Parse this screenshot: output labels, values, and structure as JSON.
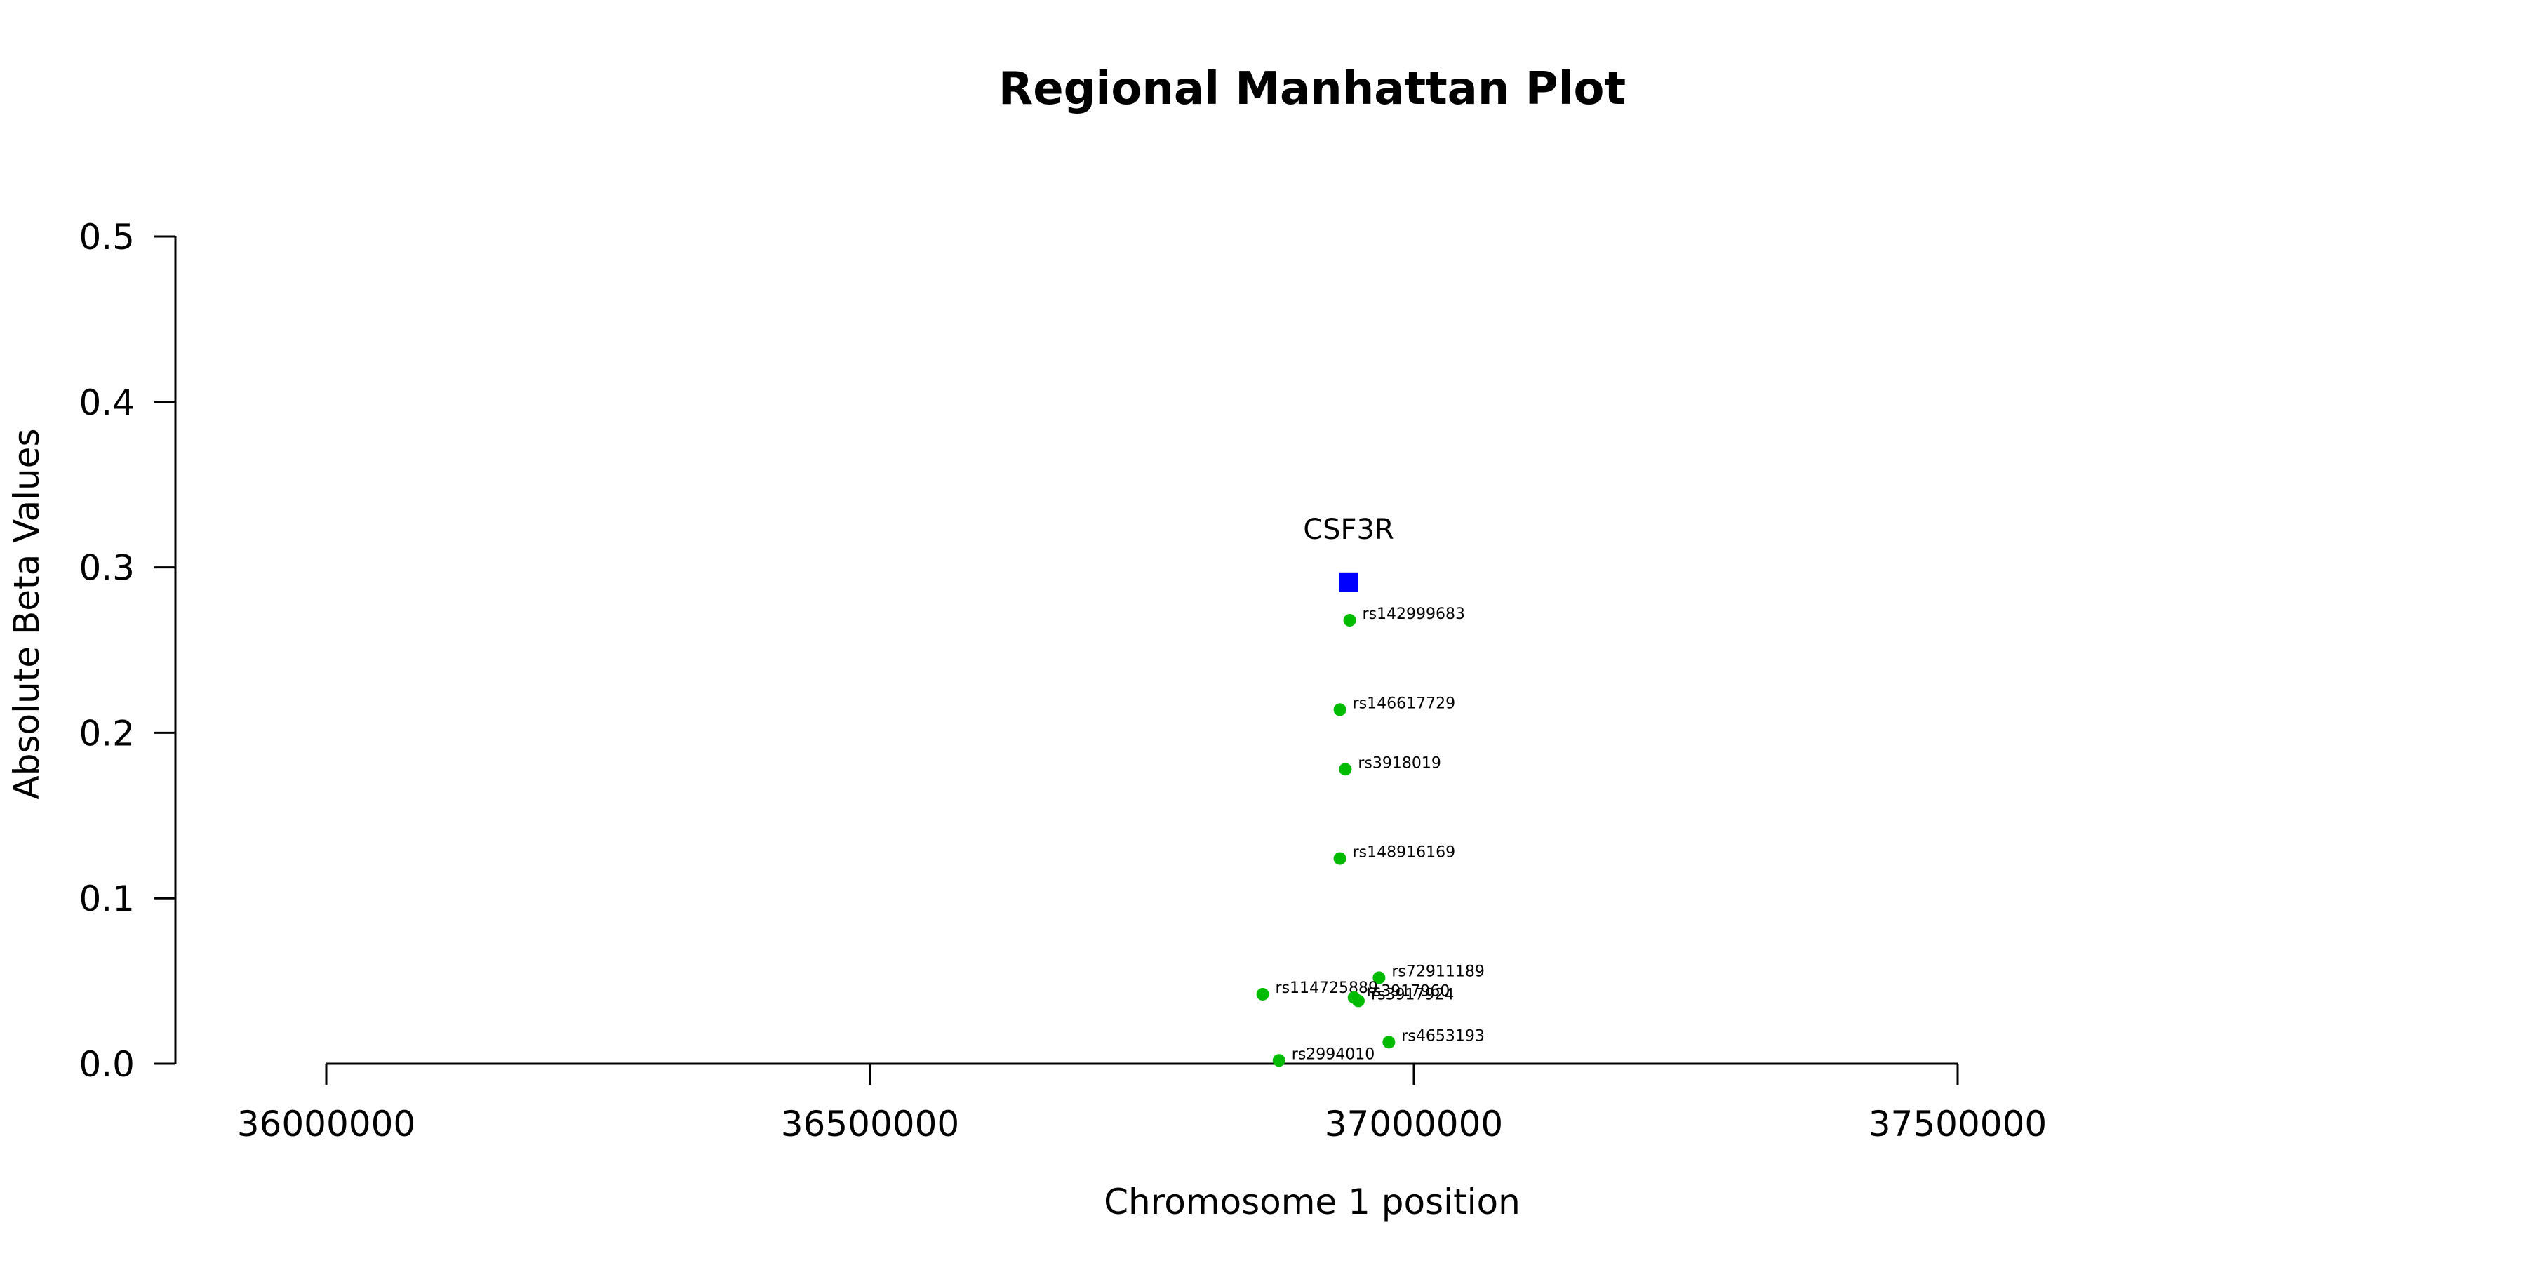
{
  "chart_data": {
    "type": "scatter",
    "title": "Regional Manhattan Plot",
    "xlabel": "Chromosome 1 position",
    "ylabel": "Absolute Beta Values",
    "xlim": [
      36000000,
      37500000
    ],
    "ylim": [
      0,
      0.5
    ],
    "x_ticks": [
      36000000,
      36500000,
      37000000,
      37500000
    ],
    "y_ticks": [
      0.0,
      0.1,
      0.2,
      0.3,
      0.4,
      0.5
    ],
    "x_tick_labels": [
      "36000000",
      "36500000",
      "37000000",
      "37500000"
    ],
    "y_tick_labels": [
      "0.0",
      "0.1",
      "0.2",
      "0.3",
      "0.4",
      "0.5"
    ],
    "grid": false,
    "gene": {
      "name": "CSF3R",
      "x": 36940000,
      "y": 0.291,
      "color": "#0000ff",
      "marker": "square"
    },
    "snp_color": "#00bb00",
    "points": [
      {
        "label": "rs142999683",
        "x": 36941000,
        "y": 0.268
      },
      {
        "label": "rs146617729",
        "x": 36932000,
        "y": 0.214
      },
      {
        "label": "rs3918019",
        "x": 36937000,
        "y": 0.178
      },
      {
        "label": "rs148916169",
        "x": 36932000,
        "y": 0.124
      },
      {
        "label": "rs72911189",
        "x": 36968000,
        "y": 0.052
      },
      {
        "label": "rs114725889",
        "x": 36861000,
        "y": 0.042
      },
      {
        "label": "rs3917960",
        "x": 36945000,
        "y": 0.04
      },
      {
        "label": "rs3917924",
        "x": 36949000,
        "y": 0.038
      },
      {
        "label": "rs4653193",
        "x": 36977000,
        "y": 0.013
      },
      {
        "label": "rs2994010",
        "x": 36876000,
        "y": 0.002
      }
    ]
  }
}
